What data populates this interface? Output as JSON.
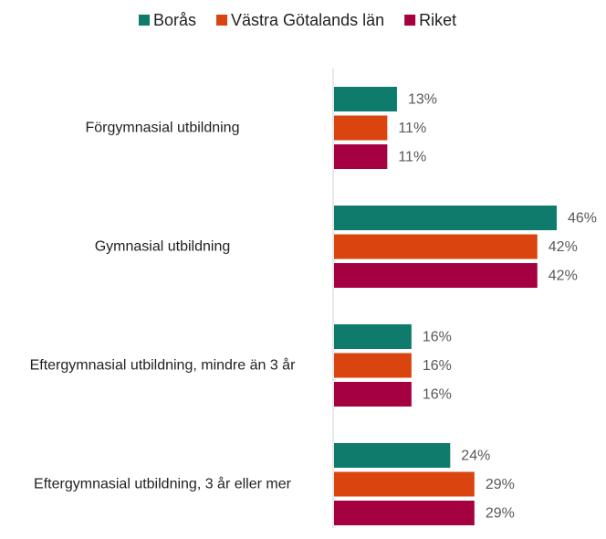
{
  "chart_data": {
    "type": "bar",
    "orientation": "horizontal",
    "categories": [
      "Förgymnasial utbildning",
      "Gymnasial utbildning",
      "Eftergymnasial utbildning, mindre än 3 år",
      "Eftergymnasial utbildning, 3 år eller mer"
    ],
    "series": [
      {
        "name": "Borås",
        "color": "#0f7b6c",
        "values": [
          13,
          46,
          16,
          24
        ],
        "value_labels": [
          "13%",
          "46%",
          "16%",
          "24%"
        ]
      },
      {
        "name": "Västra Götalands län",
        "color": "#d9440f",
        "values": [
          11,
          42,
          16,
          29
        ],
        "value_labels": [
          "11%",
          "42%",
          "16%",
          "29%"
        ]
      },
      {
        "name": "Riket",
        "color": "#a50040",
        "values": [
          11,
          42,
          16,
          29
        ],
        "value_labels": [
          "11%",
          "42%",
          "16%",
          "29%"
        ]
      }
    ],
    "legend": "top"
  }
}
